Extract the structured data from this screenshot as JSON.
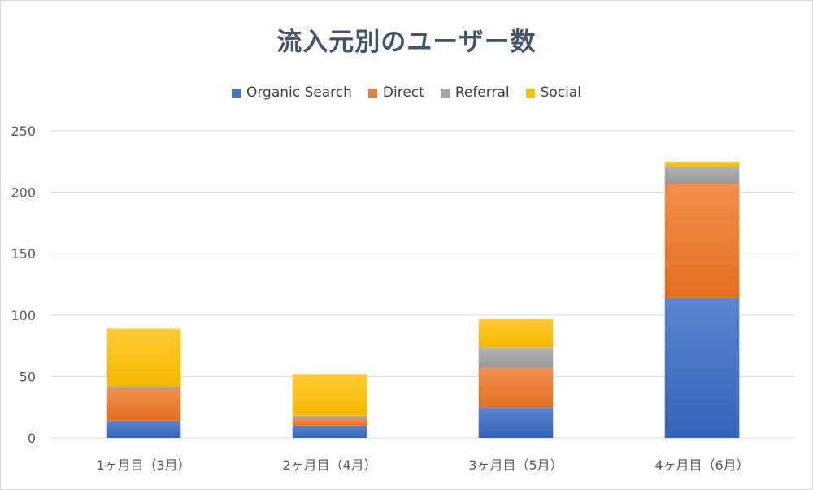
{
  "chart_data": {
    "type": "bar",
    "stacked": true,
    "title": "流入元別のユーザー数",
    "categories": [
      "1ヶ月目（3月）",
      "2ヶ月目（4月）",
      "3ヶ月目（5月）",
      "4ヶ月目（6月）"
    ],
    "series": [
      {
        "name": "Organic Search",
        "color": "#4472c4",
        "values": [
          14,
          10,
          25,
          114
        ]
      },
      {
        "name": "Direct",
        "color": "#ed7d31",
        "values": [
          26,
          6,
          32,
          93
        ]
      },
      {
        "name": "Referral",
        "color": "#a5a5a5",
        "values": [
          2,
          2,
          17,
          14
        ]
      },
      {
        "name": "Social",
        "color": "#ffc000",
        "values": [
          47,
          34,
          23,
          4
        ]
      }
    ],
    "ylim": [
      0,
      250
    ],
    "yticks": [
      0,
      50,
      100,
      150,
      200,
      250
    ],
    "grid": true,
    "legend_position": "top"
  }
}
